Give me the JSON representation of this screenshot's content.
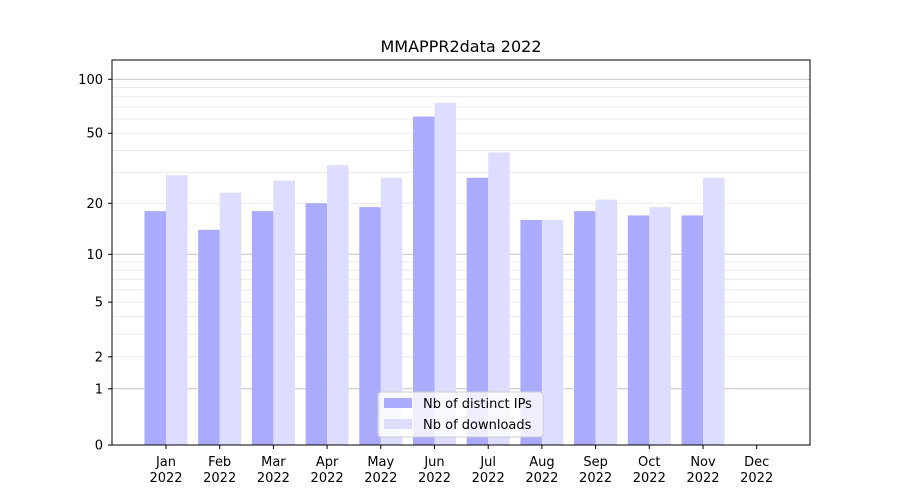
{
  "chart_data": {
    "type": "bar",
    "title": "MMAPPR2data 2022",
    "xlabel": "",
    "ylabel": "",
    "yscale": "log10(1+y)",
    "ylim": [
      0,
      120
    ],
    "yticks": [
      0,
      1,
      2,
      5,
      10,
      20,
      50,
      100
    ],
    "ytick_labels": [
      "0",
      "1",
      "2",
      "5",
      "10",
      "20",
      "50",
      "100"
    ],
    "categories": [
      "Jan\n2022",
      "Feb\n2022",
      "Mar\n2022",
      "Apr\n2022",
      "May\n2022",
      "Jun\n2022",
      "Jul\n2022",
      "Aug\n2022",
      "Sep\n2022",
      "Oct\n2022",
      "Nov\n2022",
      "Dec\n2022"
    ],
    "category_months": [
      "Jan",
      "Feb",
      "Mar",
      "Apr",
      "May",
      "Jun",
      "Jul",
      "Aug",
      "Sep",
      "Oct",
      "Nov",
      "Dec"
    ],
    "category_years": [
      "2022",
      "2022",
      "2022",
      "2022",
      "2022",
      "2022",
      "2022",
      "2022",
      "2022",
      "2022",
      "2022",
      "2022"
    ],
    "series": [
      {
        "name": "Nb of distinct IPs",
        "color": "#aaaaff",
        "values": [
          18,
          14,
          18,
          20,
          19,
          62,
          28,
          16,
          18,
          17,
          17,
          0
        ]
      },
      {
        "name": "Nb of downloads",
        "color": "#ddddff",
        "values": [
          29,
          23,
          27,
          33,
          28,
          74,
          39,
          16,
          21,
          19,
          28,
          0
        ]
      }
    ],
    "grid": true,
    "legend_position": "bottom-center"
  }
}
